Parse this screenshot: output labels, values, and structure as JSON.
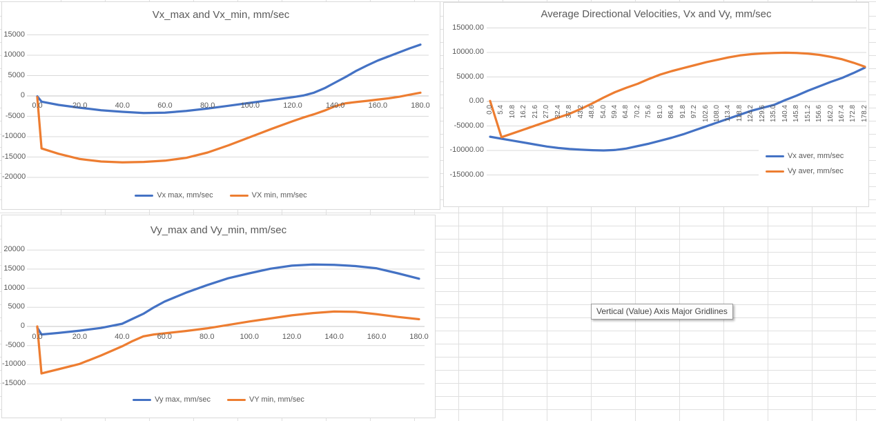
{
  "tooltip": {
    "text": "Vertical (Value) Axis Major Gridlines"
  },
  "ui_colors": {
    "series_blue": "#4472C4",
    "series_orange": "#ED7D31"
  },
  "chart_data": [
    {
      "id": "vx_max_min",
      "type": "line",
      "title": "Vx_max and Vx_min, mm/sec",
      "xlabel": "",
      "ylabel": "",
      "x_range": [
        0,
        180
      ],
      "ylim": [
        -20000,
        15000
      ],
      "grid": true,
      "legend_position": "bottom",
      "x_tick_labels": [
        "0.0",
        "20.0",
        "40.0",
        "60.0",
        "80.0",
        "100.0",
        "120.0",
        "140.0",
        "160.0",
        "180.0"
      ],
      "y_tick_labels": [
        "15000",
        "10000",
        "5000",
        "0",
        "-5000",
        "-10000",
        "-15000",
        "-20000"
      ],
      "series": [
        {
          "name": "Vx max, mm/sec",
          "color": "#4472C4",
          "x": [
            0,
            2,
            10,
            20,
            30,
            40,
            50,
            60,
            70,
            80,
            90,
            100,
            110,
            120,
            125,
            130,
            135,
            140,
            145,
            150,
            155,
            160,
            165,
            170,
            175,
            180
          ],
          "values": [
            -100,
            -1400,
            -2200,
            -2900,
            -3500,
            -3900,
            -4200,
            -4100,
            -3700,
            -3100,
            -2400,
            -1700,
            -1000,
            -300,
            100,
            800,
            1900,
            3300,
            4700,
            6200,
            7500,
            8700,
            9700,
            10700,
            11700,
            12600
          ]
        },
        {
          "name": "VX min, mm/sec",
          "color": "#ED7D31",
          "x": [
            0,
            2,
            10,
            20,
            30,
            40,
            50,
            60,
            70,
            80,
            90,
            100,
            110,
            120,
            125,
            130,
            135,
            140,
            145,
            150,
            155,
            160,
            165,
            170,
            175,
            180
          ],
          "values": [
            -300,
            -12900,
            -14200,
            -15500,
            -16100,
            -16300,
            -16200,
            -15900,
            -15200,
            -13900,
            -12100,
            -10100,
            -8100,
            -6200,
            -5300,
            -4500,
            -3600,
            -2500,
            -1800,
            -1500,
            -1200,
            -900,
            -600,
            -200,
            300,
            800
          ]
        }
      ]
    },
    {
      "id": "avg_dir",
      "type": "line",
      "title": "Average Directional Velocities, Vx and Vy, mm/sec",
      "xlabel": "",
      "ylabel": "",
      "x_range": [
        0,
        178.2
      ],
      "ylim": [
        -15000,
        15000
      ],
      "grid": true,
      "legend_position": "right",
      "x_tick_labels": [
        "0.0",
        "5.4",
        "10.8",
        "16.2",
        "21.6",
        "27.0",
        "32.4",
        "37.8",
        "43.2",
        "48.6",
        "54.0",
        "59.4",
        "64.8",
        "70.2",
        "75.6",
        "81.0",
        "86.4",
        "91.8",
        "97.2",
        "102.6",
        "108.0",
        "113.4",
        "118.8",
        "124.2",
        "129.6",
        "135.0",
        "140.4",
        "145.8",
        "151.2",
        "156.6",
        "162.0",
        "167.4",
        "172.8",
        "178.2"
      ],
      "y_tick_labels": [
        "15000.00",
        "10000.00",
        "5000.00",
        "0.00",
        "-5000.00",
        "-10000.00",
        "-15000.00"
      ],
      "series": [
        {
          "name": "Vx aver, mm/sec",
          "color": "#4472C4",
          "x": [
            0,
            5.4,
            10.8,
            16.2,
            21.6,
            27,
            32.4,
            37.8,
            43.2,
            48.6,
            54,
            59.4,
            64.8,
            70.2,
            75.6,
            81,
            86.4,
            91.8,
            97.2,
            102.6,
            108,
            113.4,
            118.8,
            124.2,
            129.6,
            135,
            140.4,
            145.8,
            151.2,
            156.6,
            162,
            167.4,
            172.8,
            178.2
          ],
          "values": [
            -7200,
            -7600,
            -8000,
            -8400,
            -8800,
            -9200,
            -9500,
            -9700,
            -9850,
            -9950,
            -10000,
            -9900,
            -9600,
            -9100,
            -8600,
            -8000,
            -7400,
            -6700,
            -5900,
            -5100,
            -4300,
            -3500,
            -2700,
            -1900,
            -1300,
            -700,
            300,
            1200,
            2200,
            3100,
            4000,
            4800,
            5800,
            6900
          ]
        },
        {
          "name": "Vy aver, mm/sec",
          "color": "#ED7D31",
          "x": [
            0,
            5.4,
            10.8,
            16.2,
            21.6,
            27,
            32.4,
            37.8,
            43.2,
            48.6,
            54,
            59.4,
            64.8,
            70.2,
            75.6,
            81,
            86.4,
            91.8,
            97.2,
            102.6,
            108,
            113.4,
            118.8,
            124.2,
            129.6,
            135,
            140.4,
            145.8,
            151.2,
            156.6,
            162,
            167.4,
            172.8,
            178.2
          ],
          "values": [
            100,
            -7300,
            -6500,
            -5700,
            -4900,
            -4100,
            -3300,
            -2500,
            -1500,
            -400,
            800,
            1900,
            2800,
            3600,
            4600,
            5500,
            6200,
            6800,
            7400,
            8000,
            8500,
            9000,
            9400,
            9650,
            9800,
            9900,
            9950,
            9900,
            9750,
            9500,
            9100,
            8600,
            7900,
            7100
          ]
        }
      ]
    },
    {
      "id": "vy_max_min",
      "type": "line",
      "title": "Vy_max and Vy_min, mm/sec",
      "xlabel": "",
      "ylabel": "",
      "x_range": [
        0,
        180
      ],
      "ylim": [
        -15000,
        20000
      ],
      "grid": true,
      "legend_position": "bottom",
      "x_tick_labels": [
        "0.0",
        "20.0",
        "40.0",
        "60.0",
        "80.0",
        "100.0",
        "120.0",
        "140.0",
        "160.0",
        "180.0"
      ],
      "y_tick_labels": [
        "20000",
        "15000",
        "10000",
        "5000",
        "0",
        "-5000",
        "-10000",
        "-15000"
      ],
      "series": [
        {
          "name": "Vy max, mm/sec",
          "color": "#4472C4",
          "x": [
            0,
            2,
            10,
            20,
            30,
            40,
            45,
            50,
            55,
            60,
            70,
            80,
            90,
            100,
            110,
            120,
            130,
            140,
            150,
            160,
            170,
            180
          ],
          "values": [
            -300,
            -2100,
            -1700,
            -1100,
            -400,
            700,
            2000,
            3300,
            5000,
            6500,
            8800,
            10800,
            12600,
            13900,
            15100,
            15900,
            16200,
            16100,
            15800,
            15200,
            13900,
            12500
          ]
        },
        {
          "name": "VY min, mm/sec",
          "color": "#ED7D31",
          "x": [
            0,
            2,
            10,
            20,
            30,
            40,
            45,
            50,
            55,
            60,
            70,
            80,
            90,
            100,
            110,
            120,
            130,
            140,
            150,
            160,
            170,
            180
          ],
          "values": [
            0,
            -12300,
            -11200,
            -9800,
            -7600,
            -5200,
            -3800,
            -2600,
            -2100,
            -1800,
            -1200,
            -500,
            400,
            1300,
            2100,
            2900,
            3500,
            3900,
            3800,
            3200,
            2500,
            1900
          ]
        }
      ]
    }
  ]
}
